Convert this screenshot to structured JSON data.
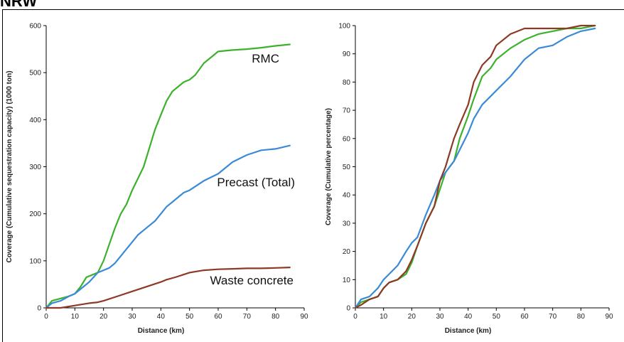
{
  "page_title": "NRW",
  "colors": {
    "rmc": "#3cb22c",
    "precast": "#3a8ad6",
    "waste": "#8c3a26",
    "axis": "#000000"
  },
  "chart_data": [
    {
      "type": "line",
      "xlabel": "Distance (km)",
      "ylabel": "Coverage (Cumulative sequestration capacity) (1000 ton)",
      "xlim": [
        0,
        90
      ],
      "ylim": [
        0,
        600
      ],
      "xticks": [
        0,
        10,
        20,
        30,
        40,
        50,
        60,
        70,
        80,
        90
      ],
      "yticks": [
        0,
        100,
        200,
        300,
        400,
        500,
        600
      ],
      "grid": false,
      "series": [
        {
          "name": "RMC",
          "color_key": "rmc",
          "x": [
            0,
            2,
            5,
            8,
            10,
            12,
            14,
            16,
            18,
            20,
            22,
            24,
            26,
            28,
            30,
            32,
            34,
            36,
            38,
            40,
            42,
            44,
            46,
            48,
            50,
            52,
            55,
            58,
            60,
            65,
            70,
            75,
            80,
            85
          ],
          "y": [
            0,
            15,
            20,
            25,
            30,
            45,
            65,
            70,
            75,
            100,
            135,
            170,
            200,
            220,
            250,
            275,
            300,
            340,
            380,
            410,
            440,
            460,
            470,
            480,
            485,
            495,
            520,
            535,
            545,
            548,
            550,
            553,
            557,
            560
          ]
        },
        {
          "name": "Precast (Total)",
          "color_key": "precast",
          "x": [
            0,
            2,
            5,
            8,
            10,
            12,
            15,
            18,
            20,
            22,
            24,
            26,
            28,
            30,
            32,
            34,
            36,
            38,
            40,
            42,
            44,
            46,
            48,
            50,
            55,
            60,
            65,
            70,
            75,
            80,
            85
          ],
          "y": [
            0,
            10,
            15,
            25,
            30,
            40,
            55,
            75,
            80,
            85,
            95,
            110,
            125,
            140,
            155,
            165,
            175,
            185,
            200,
            215,
            225,
            235,
            245,
            250,
            270,
            285,
            310,
            325,
            335,
            338,
            345
          ]
        },
        {
          "name": "Waste concrete",
          "color_key": "waste",
          "x": [
            0,
            5,
            10,
            15,
            18,
            20,
            25,
            30,
            35,
            40,
            42,
            45,
            50,
            55,
            60,
            65,
            70,
            75,
            80,
            85
          ],
          "y": [
            0,
            0,
            5,
            10,
            12,
            15,
            25,
            35,
            45,
            55,
            60,
            65,
            75,
            80,
            82,
            83,
            84,
            84,
            85,
            86
          ]
        }
      ]
    },
    {
      "type": "line",
      "xlabel": "Distance (km)",
      "ylabel": "Coverage (Cumulative percentage)",
      "xlim": [
        0,
        90
      ],
      "ylim": [
        0,
        100
      ],
      "xticks": [
        0,
        10,
        20,
        30,
        40,
        50,
        60,
        70,
        80,
        90
      ],
      "yticks": [
        0,
        10,
        20,
        30,
        40,
        50,
        60,
        70,
        80,
        90,
        100
      ],
      "grid": false,
      "series": [
        {
          "color_key": "rmc",
          "x": [
            0,
            2,
            5,
            8,
            10,
            12,
            15,
            18,
            20,
            22,
            25,
            28,
            30,
            32,
            35,
            37,
            40,
            42,
            45,
            48,
            50,
            55,
            60,
            65,
            70,
            75,
            80,
            85
          ],
          "y": [
            0,
            2,
            3,
            4,
            7,
            9,
            10,
            12,
            16,
            22,
            30,
            36,
            42,
            48,
            52,
            60,
            68,
            74,
            82,
            85,
            88,
            92,
            95,
            97,
            98,
            99,
            99,
            100
          ]
        },
        {
          "color_key": "precast",
          "x": [
            0,
            2,
            5,
            8,
            10,
            12,
            15,
            18,
            20,
            22,
            25,
            28,
            30,
            32,
            35,
            37,
            40,
            42,
            45,
            48,
            50,
            55,
            60,
            65,
            70,
            75,
            80,
            85
          ],
          "y": [
            0,
            3,
            4,
            7,
            10,
            12,
            15,
            20,
            23,
            25,
            33,
            40,
            45,
            48,
            52,
            56,
            62,
            67,
            72,
            75,
            77,
            82,
            88,
            92,
            93,
            96,
            98,
            99
          ]
        },
        {
          "color_key": "waste",
          "x": [
            0,
            2,
            5,
            8,
            10,
            12,
            15,
            18,
            20,
            22,
            25,
            28,
            30,
            32,
            35,
            37,
            40,
            42,
            45,
            48,
            50,
            55,
            60,
            65,
            70,
            75,
            80,
            85
          ],
          "y": [
            0,
            1,
            3,
            4,
            7,
            9,
            10,
            13,
            17,
            22,
            30,
            36,
            45,
            50,
            60,
            65,
            72,
            80,
            86,
            89,
            93,
            97,
            99,
            99,
            99,
            99,
            100,
            100
          ]
        }
      ]
    }
  ]
}
